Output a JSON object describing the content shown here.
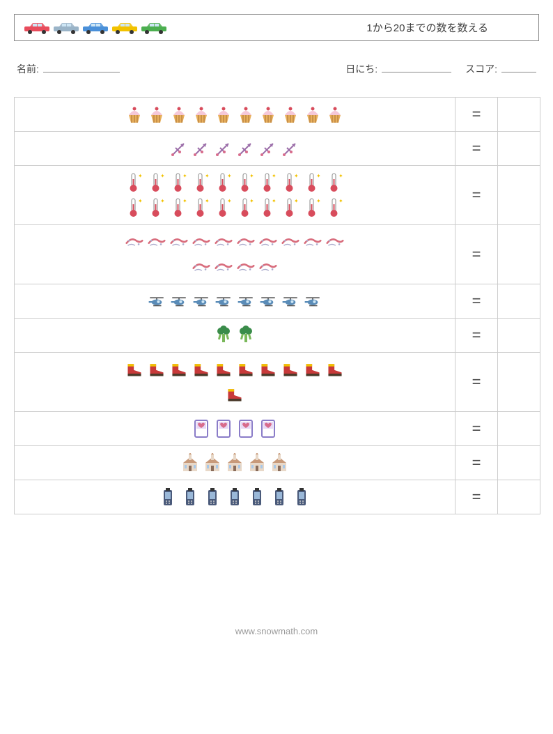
{
  "header": {
    "title": "1から20までの数を数える",
    "cars": [
      {
        "color": "#e84c5c"
      },
      {
        "color": "#9ab4c8"
      },
      {
        "color": "#4a90d9"
      },
      {
        "color": "#f2c200"
      },
      {
        "color": "#4caf50"
      }
    ]
  },
  "meta": {
    "name_label": "名前:",
    "date_label": "日にち:",
    "score_label": "スコア:",
    "name_underline_w": 110,
    "date_underline_w": 100,
    "score_underline_w": 50
  },
  "equals_sign": "=",
  "rows": [
    {
      "icon": "cupcake",
      "count": 10
    },
    {
      "icon": "sagittarius",
      "count": 6
    },
    {
      "icon": "thermometer",
      "count": 20
    },
    {
      "icon": "wind",
      "count": 14
    },
    {
      "icon": "helicopter",
      "count": 8
    },
    {
      "icon": "broccoli",
      "count": 2
    },
    {
      "icon": "boot",
      "count": 11
    },
    {
      "icon": "card",
      "count": 4
    },
    {
      "icon": "church",
      "count": 5
    },
    {
      "icon": "phone",
      "count": 7
    }
  ],
  "footer": {
    "text": "www.snowmath.com"
  },
  "icon_svgs": {
    "cupcake": "🧁",
    "sagittarius": "🏹",
    "thermometer": "🌡️",
    "wind": "💨",
    "helicopter": "🚁",
    "broccoli": "🥦",
    "boot": "🥾",
    "card": "💌",
    "church": "⛪",
    "phone": "📱"
  },
  "icon_colors": {
    "cupcake": "#e8a05c",
    "sagittarius": "#9a6ca8",
    "thermometer": "#d84c5c",
    "wind": "#d86c7c",
    "helicopter": "#5a8cb8",
    "broccoli": "#3a8c4a",
    "boot": "#c83a3a",
    "card": "#8a7cc8",
    "church": "#c89a7a",
    "phone": "#4a5a7a"
  }
}
